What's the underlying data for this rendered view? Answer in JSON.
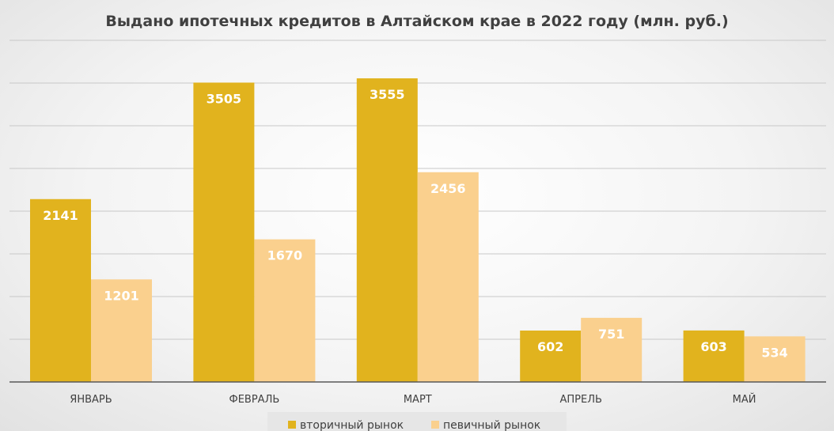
{
  "chart_data": {
    "type": "bar",
    "title": "Выдано ипотечных кредитов в Алтайском крае в 2022 году (млн. руб.)",
    "categories": [
      "ЯНВАРЬ",
      "ФЕВРАЛЬ",
      "МАРТ",
      "АПРЕЛЬ",
      "МАЙ"
    ],
    "series": [
      {
        "name": "вторичный рынок",
        "values": [
          2141,
          3505,
          3555,
          602,
          603
        ],
        "color": "#E1B31E"
      },
      {
        "name": "певичный рынок",
        "values": [
          1201,
          1670,
          2456,
          751,
          534
        ],
        "color": "#FAD08E"
      }
    ],
    "ylim": [
      0,
      4000
    ],
    "grid": true,
    "legend": "bottom"
  }
}
